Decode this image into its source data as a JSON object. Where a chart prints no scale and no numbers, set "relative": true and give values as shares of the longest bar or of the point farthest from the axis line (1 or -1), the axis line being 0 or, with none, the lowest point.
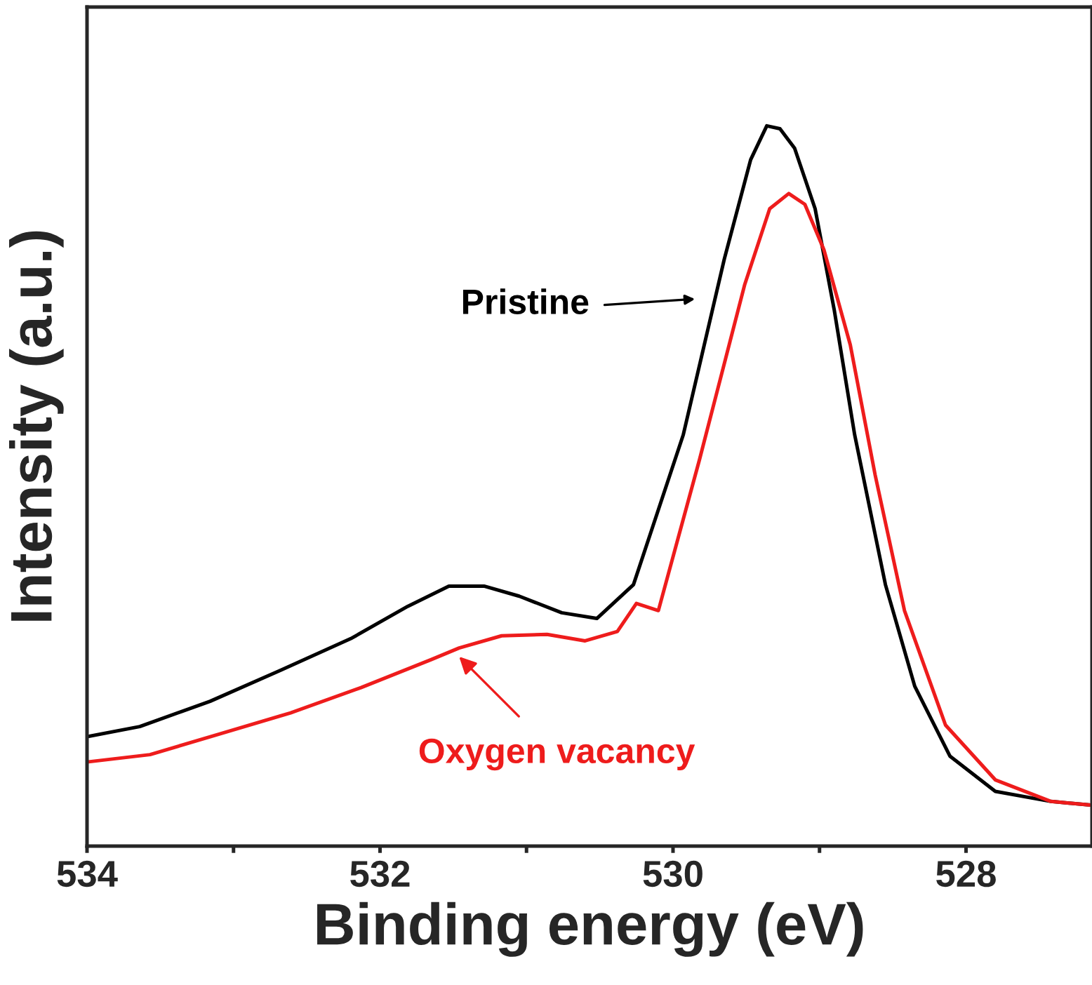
{
  "chart_data": {
    "type": "line",
    "relative": true,
    "xlabel": "Binding energy (eV)",
    "ylabel": "Intensity (a.u.)",
    "xlim": [
      534,
      527.14
    ],
    "xticks": [
      534,
      {
        "value": 533,
        "label": null
      },
      532,
      {
        "value": 531,
        "label": null
      },
      530,
      {
        "value": 529,
        "label": null
      },
      528
    ],
    "grid": false,
    "legend": false,
    "marker": "none",
    "line_style": "solid",
    "series": [
      {
        "color": "#000000",
        "x": [
          534.0,
          533.64,
          533.16,
          532.68,
          532.2,
          531.81,
          531.53,
          531.29,
          531.05,
          530.76,
          530.52,
          530.27,
          529.93,
          529.65,
          529.47,
          529.36,
          529.27,
          529.17,
          529.03,
          528.9,
          528.76,
          528.55,
          528.35,
          528.11,
          527.8,
          527.42,
          527.15
        ],
        "values": [
          0.152,
          0.166,
          0.201,
          0.244,
          0.288,
          0.333,
          0.361,
          0.361,
          0.347,
          0.324,
          0.316,
          0.363,
          0.571,
          0.815,
          0.953,
          1.0,
          0.996,
          0.969,
          0.885,
          0.745,
          0.571,
          0.363,
          0.222,
          0.125,
          0.076,
          0.062,
          0.057
        ]
      },
      {
        "color": "#ee1c1c",
        "x": [
          533.99,
          533.57,
          533.09,
          532.61,
          532.13,
          531.65,
          531.46,
          531.17,
          530.86,
          530.6,
          530.38,
          530.25,
          530.1,
          529.82,
          529.51,
          529.34,
          529.21,
          529.1,
          528.97,
          528.79,
          528.62,
          528.42,
          528.14,
          527.8,
          527.42,
          527.15
        ],
        "values": [
          0.117,
          0.127,
          0.156,
          0.185,
          0.22,
          0.259,
          0.275,
          0.292,
          0.294,
          0.285,
          0.298,
          0.337,
          0.327,
          0.536,
          0.78,
          0.885,
          0.906,
          0.891,
          0.828,
          0.696,
          0.515,
          0.327,
          0.168,
          0.092,
          0.062,
          0.057
        ]
      }
    ],
    "annotations": [
      "Pristine",
      {
        "text": "Oxygen vacancy",
        "x": 531.46,
        "y": 0.263
      }
    ]
  }
}
